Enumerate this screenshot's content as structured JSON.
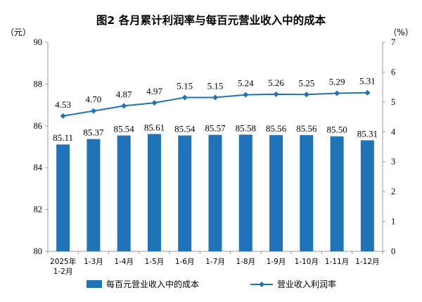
{
  "colors": {
    "bar": "#1f73b8",
    "line": "#1f73b8",
    "axis": "#999999"
  },
  "chart_data": {
    "type": "bar",
    "title": "图2  各月累计利润率与每百元营业收入中的成本",
    "left_unit": "（元）",
    "right_unit": "（%）",
    "categories": [
      [
        "2025年",
        "1-2月"
      ],
      [
        "1-3月"
      ],
      [
        "1-4月"
      ],
      [
        "1-5月"
      ],
      [
        "1-6月"
      ],
      [
        "1-7月"
      ],
      [
        "1-8月"
      ],
      [
        "1-9月"
      ],
      [
        "1-10月"
      ],
      [
        "1-11月"
      ],
      [
        "1-12月"
      ]
    ],
    "series": [
      {
        "name": "每百元营业收入中的成本",
        "type": "bar",
        "axis": "left",
        "values": [
          85.11,
          85.37,
          85.54,
          85.61,
          85.54,
          85.57,
          85.58,
          85.56,
          85.56,
          85.5,
          85.31
        ],
        "labels": [
          "85.11",
          "85.37",
          "85.54",
          "85.61",
          "85.54",
          "85.57",
          "85.58",
          "85.56",
          "85.56",
          "85.50",
          "85.31"
        ]
      },
      {
        "name": "营业收入利润率",
        "type": "line",
        "axis": "right",
        "values": [
          4.53,
          4.7,
          4.87,
          4.97,
          5.15,
          5.15,
          5.24,
          5.26,
          5.25,
          5.29,
          5.31
        ],
        "labels": [
          "4.53",
          "4.70",
          "4.87",
          "4.97",
          "5.15",
          "5.15",
          "5.24",
          "5.26",
          "5.25",
          "5.29",
          "5.31"
        ]
      }
    ],
    "y_left": {
      "min": 80,
      "max": 90,
      "ticks": [
        "80",
        "82",
        "84",
        "86",
        "88",
        "90"
      ]
    },
    "y_right": {
      "min": 0,
      "max": 7,
      "ticks": [
        "0",
        "1",
        "2",
        "3",
        "4",
        "5",
        "6",
        "7"
      ]
    },
    "grid": false,
    "legend": "bottom"
  }
}
